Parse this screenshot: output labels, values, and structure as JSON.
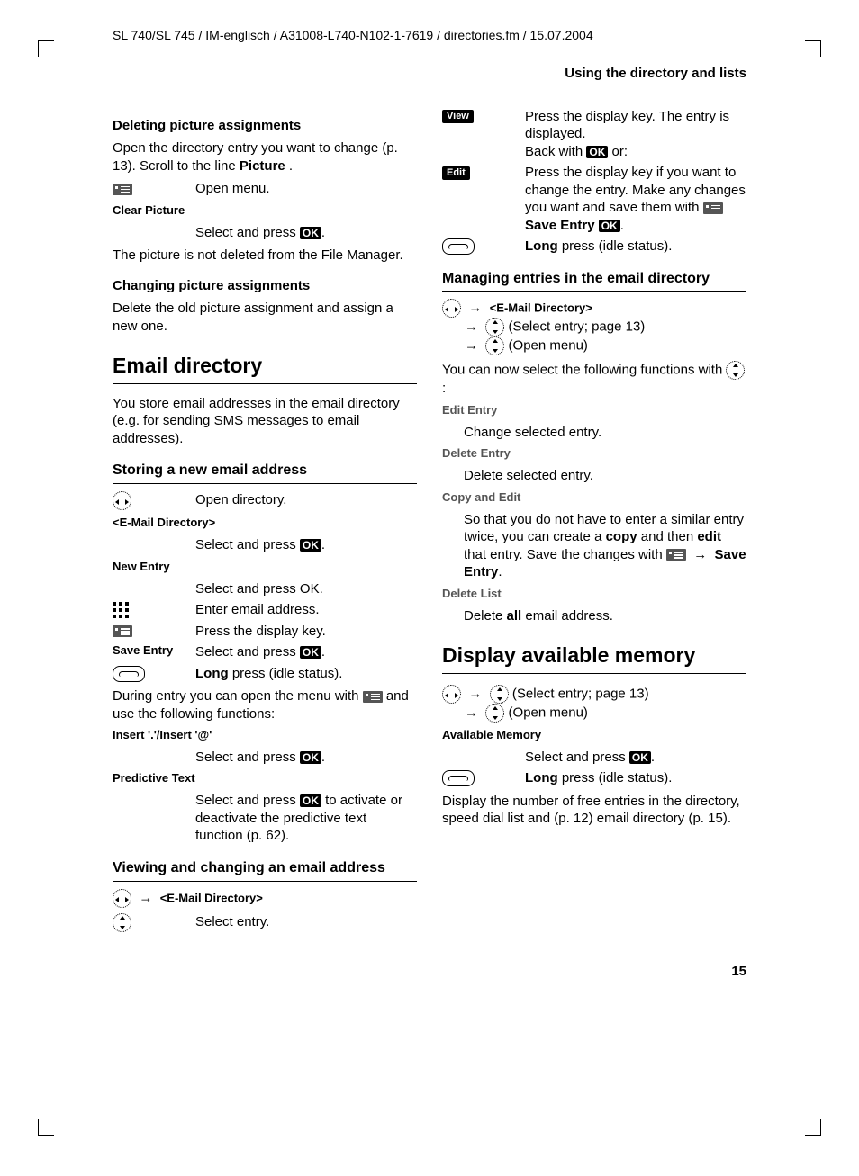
{
  "doc_path": "SL 740/SL 745 / IM-englisch / A31008-L740-N102-1-7619 / directories.fm / 15.07.2004",
  "section": "Using the directory and lists",
  "page_num": "15",
  "left": {
    "h4_del": "Deleting picture assignments",
    "p_del": "Open the directory entry you want to change (p. 13). Scroll to the line ",
    "p_del_b": "Picture",
    "open_menu": "Open menu.",
    "clear_pic": "Clear Picture",
    "sel_press": "Select and press ",
    "p_notdel": "The picture is not deleted from the File Manager.",
    "h4_chg": "Changing picture assignments",
    "p_chg": "Delete the old picture assignment and assign a new one.",
    "h2_email": "Email directory",
    "p_email": "You store email addresses in the email directory (e.g. for sending SMS messages to email addresses).",
    "h3_store": "Storing a new email address",
    "open_dir": "Open directory.",
    "emaildir": "<E-Mail Directory>",
    "new_entry": "New Entry",
    "sel_press_ok": "Select and press OK.",
    "enter_email": "Enter email address.",
    "press_disp": "Press the display key.",
    "save_entry": "Save Entry",
    "long": "Long",
    "idle": " press (idle status).",
    "during": "During entry you can open the menu with ",
    "during2": " and use the following functions:",
    "insert": "Insert '.'/Insert '@'",
    "predtxt": "Predictive Text",
    "pred_desc": " to activate or deactivate the predictive text function (p. 62).",
    "h3_view": "Viewing and changing an email address",
    "sel_entry": "Select entry."
  },
  "right": {
    "view": "View",
    "view_desc": "Press the display key. The entry is displayed.",
    "back_with": "Back with ",
    "or": " or:",
    "edit": "Edit",
    "edit_desc": "Press the display key if you want to change the entry. Make any changes you want and save them with ",
    "save_entry": "Save Entry",
    "h3_manage": "Managing entries in the email directory",
    "emaildir": "<E-Mail Directory>",
    "sel_entry_p13": "(Select entry; page 13)",
    "open_menu": "(Open menu)",
    "now_sel": "You can now select the following functions with ",
    "edit_entry": "Edit Entry",
    "edit_entry_d": "Change selected entry.",
    "del_entry": "Delete Entry",
    "del_entry_d": "Delete selected entry.",
    "copy_edit": "Copy and Edit",
    "copy_edit_d1": "So that you do not have to enter a similar entry twice, you can create a ",
    "copy": "copy",
    "copy_edit_d2": " and then ",
    "editb": "edit",
    "copy_edit_d3": " that entry. Save the changes with ",
    "save_entry2": "Save Entry",
    "del_list": "Delete List",
    "del_list_d1": "Delete ",
    "all": "all",
    "del_list_d2": " email address.",
    "h2_mem": "Display available memory",
    "avail_mem": "Available Memory",
    "sel_press": "Select and press ",
    "disp_num": "Display the number of free entries in the directory, speed dial list and (p. 12) email directory (p. 15)."
  }
}
